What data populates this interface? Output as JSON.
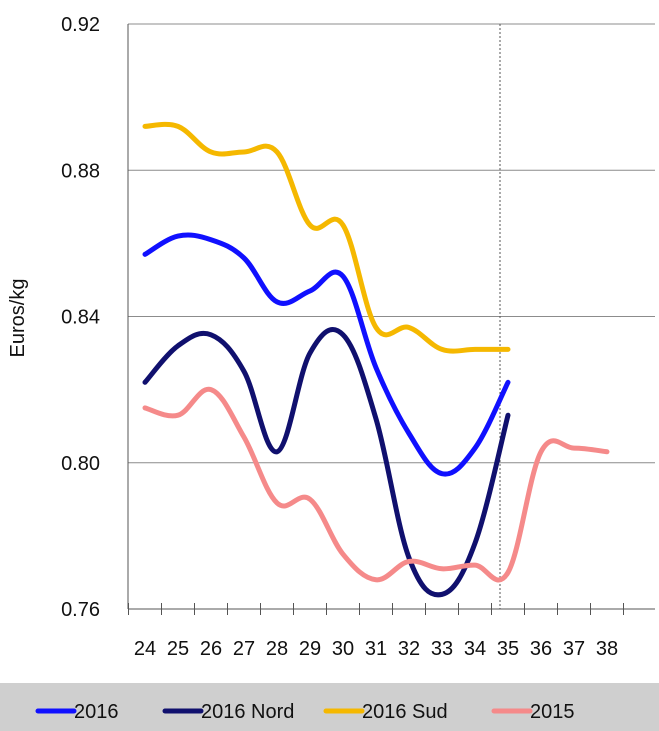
{
  "chart_data": {
    "type": "line",
    "title": "",
    "xlabel": "",
    "ylabel": "Euros/kg",
    "ylim": [
      0.76,
      0.92
    ],
    "yticks": [
      "0.76",
      "0.80",
      "0.84",
      "0.88",
      "0.92"
    ],
    "y_tick_values": [
      0.76,
      0.8,
      0.84,
      0.88,
      0.92
    ],
    "categories": [
      "24",
      "25",
      "26",
      "27",
      "28",
      "29",
      "30",
      "31",
      "32",
      "33",
      "34",
      "35",
      "36",
      "37",
      "38"
    ],
    "grid": "horizontal",
    "reference_line_at": "35",
    "legend_position": "bottom",
    "legend_background": "#cfcfcf",
    "series": [
      {
        "name": "2016",
        "color": "#1010ff",
        "values": [
          0.857,
          0.862,
          0.861,
          0.856,
          0.844,
          0.847,
          0.851,
          0.826,
          0.808,
          0.797,
          0.804,
          0.822,
          null,
          null,
          null
        ]
      },
      {
        "name": "2016 Nord",
        "color": "#10106e",
        "values": [
          0.822,
          0.832,
          0.835,
          0.825,
          0.803,
          0.83,
          0.835,
          0.812,
          0.774,
          0.764,
          0.778,
          0.813,
          null,
          null,
          null
        ]
      },
      {
        "name": "2016 Sud",
        "color": "#f5b800",
        "values": [
          0.892,
          0.892,
          0.885,
          0.885,
          0.885,
          0.865,
          0.865,
          0.837,
          0.837,
          0.831,
          0.831,
          0.831,
          null,
          null,
          null
        ]
      },
      {
        "name": "2015",
        "color": "#f58a8a",
        "values": [
          0.815,
          0.813,
          0.82,
          0.807,
          0.789,
          0.79,
          0.775,
          0.768,
          0.773,
          0.771,
          0.772,
          0.77,
          0.803,
          0.804,
          0.803
        ]
      }
    ]
  }
}
